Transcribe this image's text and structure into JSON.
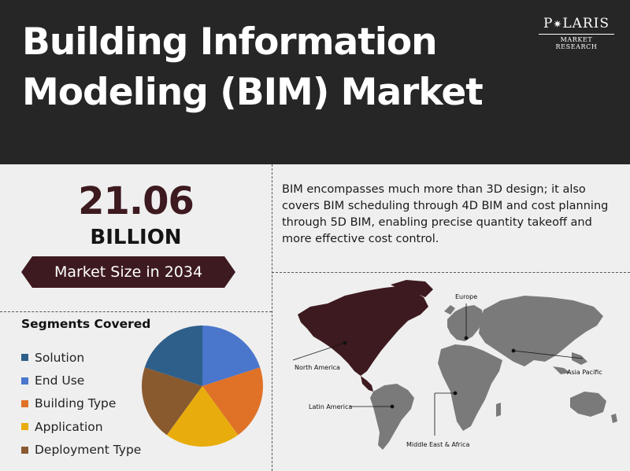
{
  "header": {
    "title_line1": "Building Information",
    "title_line2": "Modeling (BIM) Market",
    "logo_name_a": "P",
    "logo_name_b": "LARIS",
    "logo_sub": "MARKET RESEARCH"
  },
  "market": {
    "value": "21.06",
    "unit": "BILLION",
    "caption": "Market Size in 2034"
  },
  "description": "BIM encompasses much more than 3D design; it also covers BIM scheduling through 4D BIM and cost planning through 5D BIM, enabling precise quantity takeoff and more effective cost control.",
  "segments": {
    "title": "Segments Covered"
  },
  "colors": {
    "header_bg": "#262626",
    "accent": "#3d1a1f",
    "map_highlight": "#3d1a1f",
    "map_land": "#7a7a7a"
  },
  "chart_data": {
    "type": "pie",
    "title": "Segments Covered",
    "series": [
      {
        "name": "Solution",
        "value": 20,
        "color": "#2e5f8a"
      },
      {
        "name": "End Use",
        "value": 20,
        "color": "#4a76cc"
      },
      {
        "name": "Building Type",
        "value": 20,
        "color": "#e07228"
      },
      {
        "name": "Application",
        "value": 20,
        "color": "#e8ad0c"
      },
      {
        "name": "Deployment Type",
        "value": 20,
        "color": "#8a5a2f"
      }
    ],
    "start_slice": "End Use",
    "legend_position": "left"
  },
  "map": {
    "regions": {
      "north_america": "North America",
      "europe": "Europe",
      "asia_pacific": "Asia Pacific",
      "latin_america": "Latin America",
      "mea": "Middle East & Africa"
    }
  }
}
